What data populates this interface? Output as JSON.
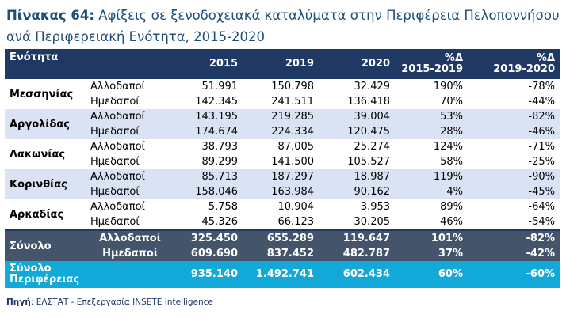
{
  "title": {
    "label": "Πίνακας 64:",
    "text": "Αφίξεις σε ξενοδοχειακά καταλύματα στην Περιφέρεια Πελοποννήσου ανά Περιφερειακή Ενότητα, 2015-2020"
  },
  "table": {
    "headers": {
      "unit": "Ενότητα",
      "y2015": "2015",
      "y2019": "2019",
      "y2020": "2020",
      "d1_top": "%Δ",
      "d1_bottom": "2015-2019",
      "d2_top": "%Δ",
      "d2_bottom": "2019-2020"
    },
    "regions": [
      {
        "name": "Μεσσηνίας",
        "rows": [
          {
            "type": "Αλλοδαποί",
            "v2015": "51.991",
            "v2019": "150.798",
            "v2020": "32.429",
            "d1": "190%",
            "d2": "-78%"
          },
          {
            "type": "Ημεδαποί",
            "v2015": "142.345",
            "v2019": "241.511",
            "v2020": "136.418",
            "d1": "70%",
            "d2": "-44%"
          }
        ]
      },
      {
        "name": "Αργολίδας",
        "rows": [
          {
            "type": "Αλλοδαποί",
            "v2015": "143.195",
            "v2019": "219.285",
            "v2020": "39.004",
            "d1": "53%",
            "d2": "-82%"
          },
          {
            "type": "Ημεδαποί",
            "v2015": "174.674",
            "v2019": "224.334",
            "v2020": "120.475",
            "d1": "28%",
            "d2": "-46%"
          }
        ]
      },
      {
        "name": "Λακωνίας",
        "rows": [
          {
            "type": "Αλλοδαποί",
            "v2015": "38.793",
            "v2019": "87.005",
            "v2020": "25.274",
            "d1": "124%",
            "d2": "-71%"
          },
          {
            "type": "Ημεδαποί",
            "v2015": "89.299",
            "v2019": "141.500",
            "v2020": "105.527",
            "d1": "58%",
            "d2": "-25%"
          }
        ]
      },
      {
        "name": "Κορινθίας",
        "rows": [
          {
            "type": "Αλλοδαποί",
            "v2015": "85.713",
            "v2019": "187.297",
            "v2020": "18.987",
            "d1": "119%",
            "d2": "-90%"
          },
          {
            "type": "Ημεδαποί",
            "v2015": "158.046",
            "v2019": "163.984",
            "v2020": "90.162",
            "d1": "4%",
            "d2": "-45%"
          }
        ]
      },
      {
        "name": "Αρκαδίας",
        "rows": [
          {
            "type": "Αλλοδαποί",
            "v2015": "5.758",
            "v2019": "10.904",
            "v2020": "3.953",
            "d1": "89%",
            "d2": "-64%"
          },
          {
            "type": "Ημεδαποί",
            "v2015": "45.326",
            "v2019": "66.123",
            "v2020": "30.205",
            "d1": "46%",
            "d2": "-54%"
          }
        ]
      }
    ],
    "total": {
      "name": "Σύνολο",
      "rows": [
        {
          "type": "Αλλοδαποί",
          "v2015": "325.450",
          "v2019": "655.289",
          "v2020": "119.647",
          "d1": "101%",
          "d2": "-82%"
        },
        {
          "type": "Ημεδαποί",
          "v2015": "609.690",
          "v2019": "837.452",
          "v2020": "482.787",
          "d1": "37%",
          "d2": "-42%"
        }
      ]
    },
    "region_total": {
      "name_line1": "Σύνολο",
      "name_line2": "Περιφέρειας",
      "v2015": "935.140",
      "v2019": "1.492.741",
      "v2020": "602.434",
      "d1": "60%",
      "d2": "-60%"
    }
  },
  "source": {
    "label": "Πηγή",
    "text": ": ΕΛΣΤΑΤ - Επεξεργασία INSETE Intelligence"
  },
  "colors": {
    "header_bg": "#1f3864",
    "band": "#dae3f3",
    "total_bg": "#44546a",
    "region_total_bg": "#12a8d8",
    "title": "#1f4e79"
  }
}
